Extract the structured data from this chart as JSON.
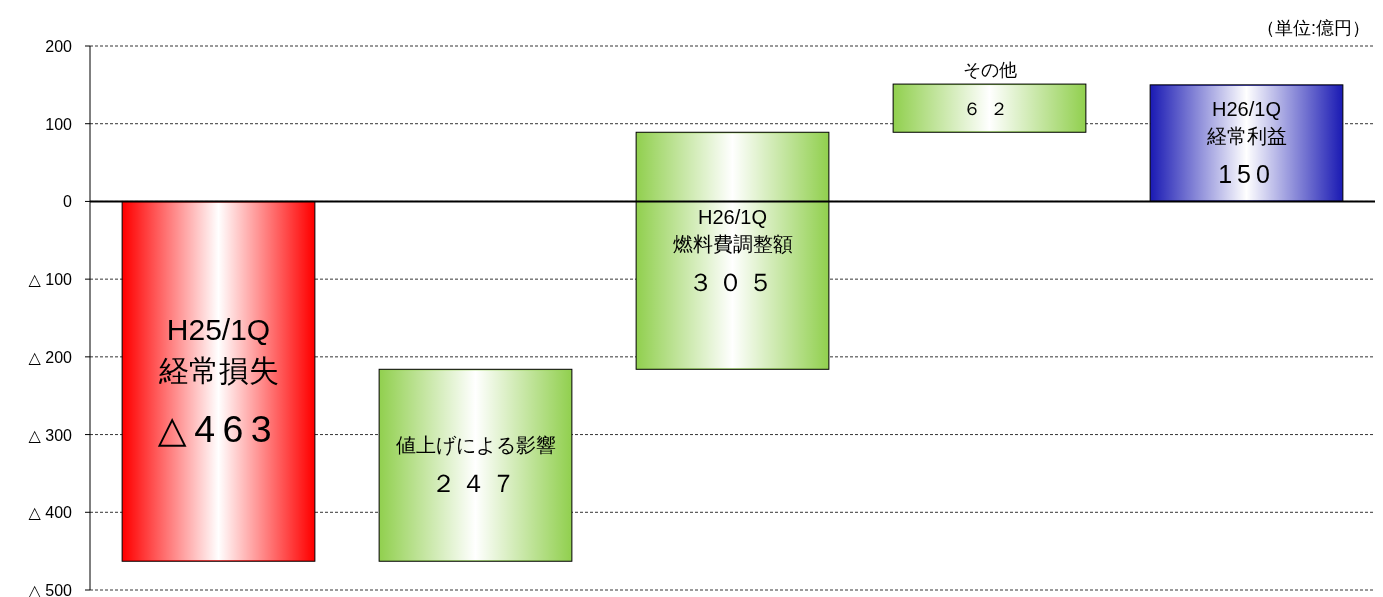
{
  "chart_data": {
    "type": "bar",
    "categories": [
      "H25/1Q\n経常損失",
      "値上げによる影響",
      "H26/1Q\n燃料費調整額",
      "その他",
      "H26/1Q\n経常利益"
    ],
    "values": [
      -463,
      247,
      305,
      62,
      150
    ],
    "base": [
      0,
      -463,
      -216,
      89,
      0
    ],
    "value_labels": [
      "△463",
      "２４７",
      "３０５",
      "６２",
      "150"
    ],
    "colors": [
      "#ff0000",
      "#92d050",
      "#92d050",
      "#92d050",
      "#1c1cb4"
    ],
    "ylim": [
      -500,
      200
    ],
    "yticks": [
      200,
      100,
      0,
      {
        "value": -100,
        "label": "△ 100"
      },
      {
        "value": -200,
        "label": "△ 200"
      },
      {
        "value": -300,
        "label": "△ 300"
      },
      {
        "value": -400,
        "label": "△ 400"
      },
      {
        "value": -500,
        "label": "△ 500"
      }
    ],
    "grid": "y",
    "annotations": [
      "（単位:億円）"
    ]
  }
}
